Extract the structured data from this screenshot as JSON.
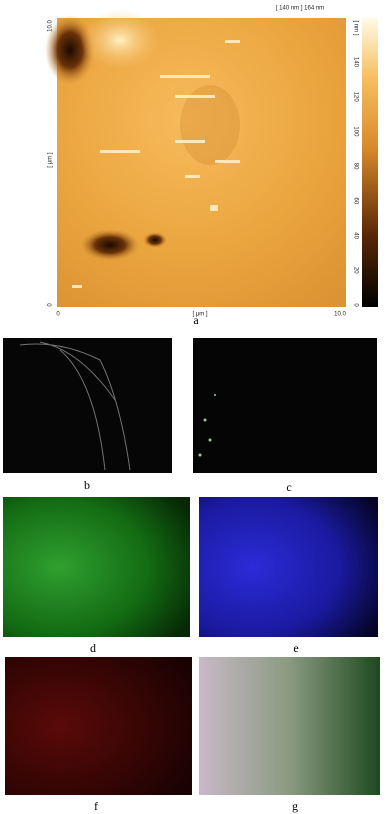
{
  "figure": {
    "afm": {
      "range_label": "[ 140 nm ] 164 nm",
      "y_axis": {
        "bottom": "0",
        "top": "10.0",
        "unit": "[ μm ]"
      },
      "x_axis": {
        "left": "0",
        "unit": "[ μm ]",
        "right": "10.0"
      },
      "colorbar": {
        "unit": "[ nm ]",
        "ticks": [
          "140",
          "120",
          "100",
          "80",
          "60",
          "40",
          "20",
          "0"
        ]
      }
    },
    "panels": [
      "a",
      "b",
      "c",
      "d",
      "e",
      "f",
      "g"
    ]
  }
}
